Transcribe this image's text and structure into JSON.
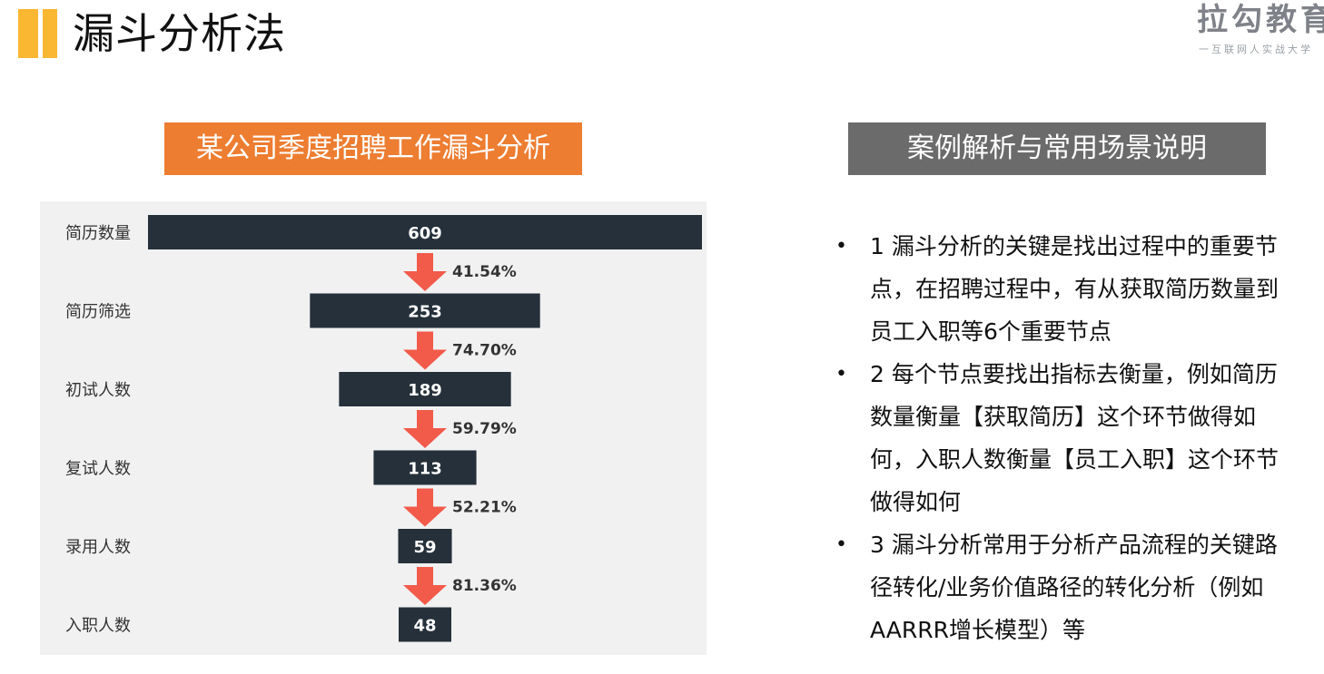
{
  "page": {
    "title": "漏斗分析法",
    "logo_main": "拉勾教育",
    "logo_sub": "一互联网人实战大学"
  },
  "left_header": "某公司季度招聘工作漏斗分析",
  "right_header": "案例解析与常用场景说明",
  "chart_data": {
    "type": "bar",
    "orientation": "horizontal-centered-funnel",
    "title": "某公司季度招聘工作漏斗分析",
    "categories": [
      "简历数量",
      "简历筛选",
      "初试人数",
      "复试人数",
      "录用人数",
      "入职人数"
    ],
    "values": [
      609,
      253,
      189,
      113,
      59,
      48
    ],
    "value_labels": [
      "609",
      "253",
      "189",
      "113",
      "59",
      "48"
    ],
    "conversion_rates": [
      "41.54%",
      "74.70%",
      "59.79%",
      "52.21%",
      "81.36%"
    ],
    "xlim": [
      0,
      609
    ],
    "grid": false,
    "legend": "none",
    "colors": {
      "bar": "#25303a",
      "arrow": "#f25a4a",
      "panel": "#f1f1f1",
      "label": "#ffffff"
    }
  },
  "bullets": [
    {
      "marker": "•",
      "text": "1 漏斗分析的关键是找出过程中的重要节点，在招聘过程中，有从获取简历数量到员工入职等6个重要节点"
    },
    {
      "marker": "•",
      "text": "2 每个节点要找出指标去衡量，例如简历数量衡量【获取简历】这个环节做得如何，入职人数衡量【员工入职】这个环节做得如何"
    },
    {
      "marker": "•",
      "text": "3 漏斗分析常用于分析产品流程的关键路径转化/业务价值路径的转化分析（例如AARRR增长模型）等"
    }
  ],
  "colors": {
    "accent_yellow": "#f9b732",
    "header_orange": "#ed7d31",
    "header_gray": "#6b6b6b"
  }
}
